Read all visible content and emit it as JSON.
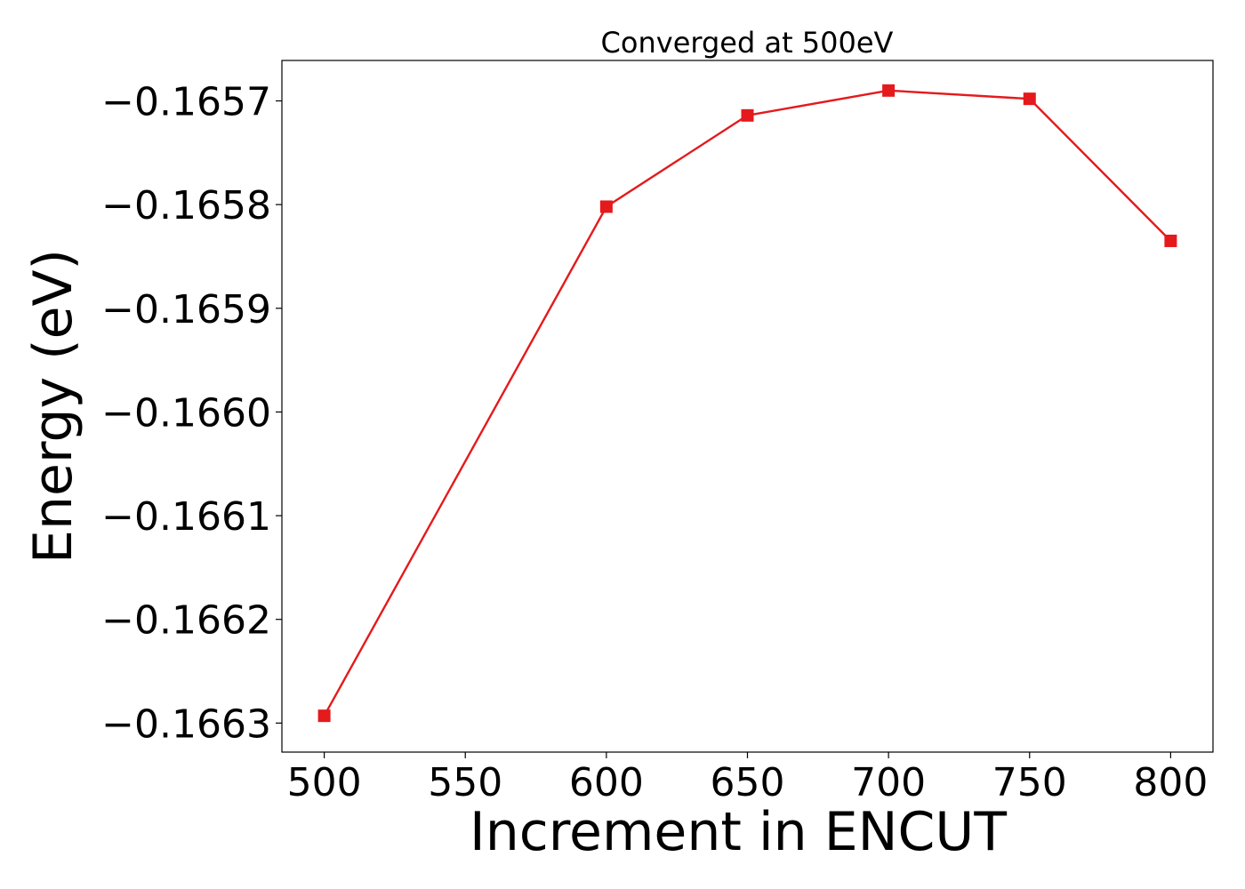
{
  "chart_data": {
    "type": "line",
    "title": "Converged at 500eV",
    "xlabel": "Increment in ENCUT",
    "ylabel": "Energy (eV)",
    "x": [
      500,
      600,
      650,
      700,
      750,
      800
    ],
    "series": [
      {
        "values": [
          -0.166293,
          -0.165802,
          -0.165714,
          -0.16569,
          -0.165698,
          -0.165835
        ],
        "color": "#e41a1c",
        "marker": "square"
      }
    ],
    "xlim": [
      485,
      815
    ],
    "ylim": [
      -0.166328,
      -0.165661
    ],
    "xticks": [
      500,
      550,
      600,
      650,
      700,
      750,
      800
    ],
    "xtick_labels": [
      "500",
      "550",
      "600",
      "650",
      "700",
      "750",
      "800"
    ],
    "yticks": [
      -0.1663,
      -0.1662,
      -0.1661,
      -0.166,
      -0.1659,
      -0.1658,
      -0.1657
    ],
    "ytick_labels": [
      "−0.1663",
      "−0.1662",
      "−0.1661",
      "−0.1660",
      "−0.1659",
      "−0.1658",
      "−0.1657"
    ],
    "grid": false,
    "legend": false
  }
}
